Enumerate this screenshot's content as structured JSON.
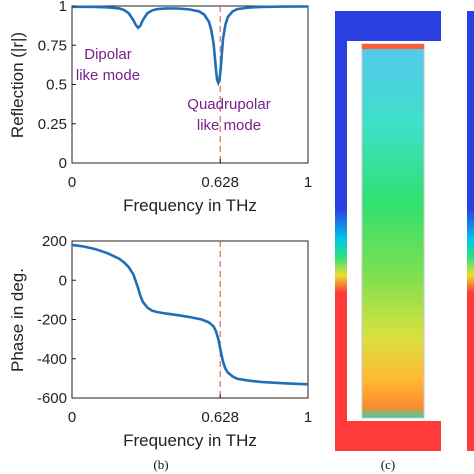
{
  "chart_data": [
    {
      "type": "line",
      "xlabel": "Frequency in THz",
      "ylabel": "Reflection (|r|)",
      "xlim": [
        0,
        1
      ],
      "ylim": [
        0,
        1
      ],
      "xticks": [
        "0",
        "0.628",
        "1"
      ],
      "yticks": [
        "0",
        "0.25",
        "0.5",
        "0.75",
        "1"
      ],
      "grid": false,
      "series": [
        {
          "color": "#1f6fb8",
          "x": [
            0,
            0.05,
            0.1,
            0.15,
            0.2,
            0.22,
            0.24,
            0.26,
            0.27,
            0.28,
            0.29,
            0.3,
            0.32,
            0.34,
            0.36,
            0.4,
            0.45,
            0.5,
            0.54,
            0.56,
            0.58,
            0.59,
            0.6,
            0.605,
            0.61,
            0.615,
            0.62,
            0.625,
            0.63,
            0.635,
            0.64,
            0.65,
            0.66,
            0.68,
            0.7,
            0.75,
            0.8,
            0.9,
            1.0
          ],
          "y": [
            0.995,
            0.995,
            0.994,
            0.992,
            0.985,
            0.975,
            0.955,
            0.91,
            0.88,
            0.862,
            0.875,
            0.91,
            0.955,
            0.972,
            0.98,
            0.985,
            0.984,
            0.978,
            0.965,
            0.945,
            0.9,
            0.85,
            0.76,
            0.68,
            0.59,
            0.53,
            0.51,
            0.53,
            0.6,
            0.7,
            0.79,
            0.88,
            0.93,
            0.965,
            0.98,
            0.99,
            0.994,
            0.996,
            0.997
          ]
        }
      ],
      "vline": {
        "x": 0.628,
        "color": "#e06a50",
        "style": "dashed"
      },
      "annotations": [
        {
          "lines": [
            "Dipolar",
            "like mode"
          ],
          "color": "#7a1f8c"
        },
        {
          "lines": [
            "Quadrupolar",
            "like mode"
          ],
          "color": "#7a1f8c"
        }
      ]
    },
    {
      "type": "line",
      "xlabel": "Frequency in THz",
      "ylabel": "Phase in deg.",
      "xlim": [
        0,
        1
      ],
      "ylim": [
        -600,
        200
      ],
      "xticks": [
        "0",
        "0.628",
        "1"
      ],
      "yticks": [
        "200",
        "0",
        "-200",
        "-400",
        "-600"
      ],
      "grid": false,
      "series": [
        {
          "color": "#1f6fb8",
          "x": [
            0,
            0.05,
            0.1,
            0.15,
            0.2,
            0.22,
            0.24,
            0.26,
            0.28,
            0.29,
            0.3,
            0.32,
            0.34,
            0.36,
            0.4,
            0.45,
            0.5,
            0.55,
            0.58,
            0.6,
            0.61,
            0.62,
            0.63,
            0.64,
            0.65,
            0.66,
            0.68,
            0.7,
            0.75,
            0.8,
            0.9,
            1.0
          ],
          "y": [
            180,
            172,
            158,
            138,
            110,
            92,
            68,
            30,
            -40,
            -80,
            -110,
            -140,
            -155,
            -162,
            -170,
            -178,
            -188,
            -200,
            -215,
            -235,
            -260,
            -300,
            -360,
            -415,
            -450,
            -470,
            -490,
            -502,
            -512,
            -518,
            -525,
            -530
          ]
        }
      ],
      "vline": {
        "x": 0.628,
        "color": "#e06a50",
        "style": "dashed"
      }
    }
  ],
  "panel_labels": {
    "b": "(b)",
    "c": "(c)"
  },
  "field_map": {
    "colors": [
      "#2a3fe0",
      "#00c8e8",
      "#2ee07a",
      "#c8e830",
      "#ff3a3a"
    ]
  }
}
